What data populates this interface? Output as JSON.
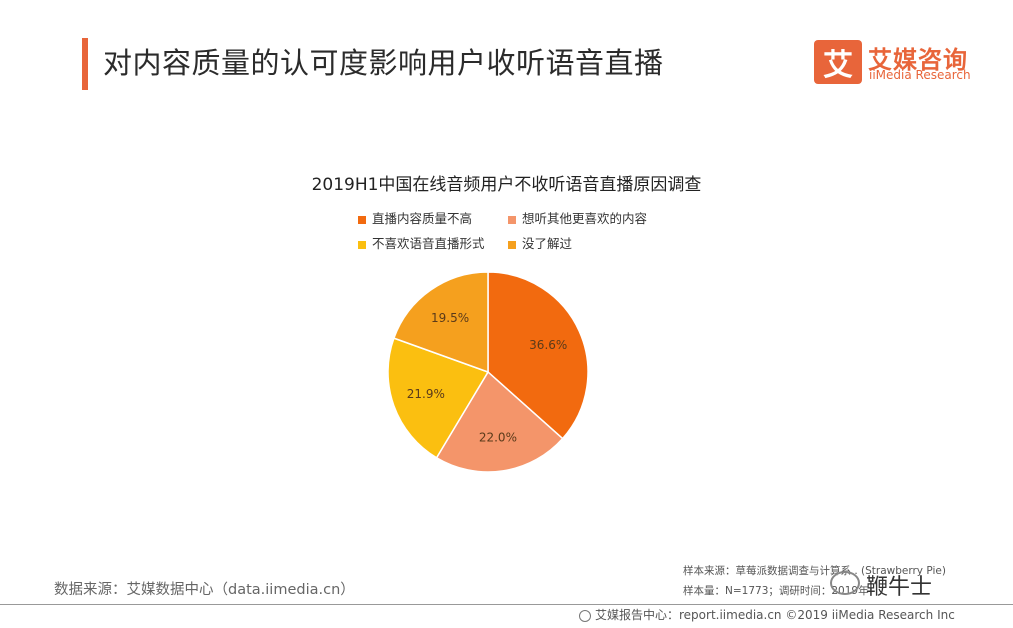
{
  "header": {
    "title": "对内容质量的认可度影响用户收听语音直播",
    "logo_mark": "艾",
    "logo_cn": "艾媒咨询",
    "logo_en": "iiMedia Research"
  },
  "chart_data": {
    "type": "pie",
    "title": "2019H1中国在线音频用户不收听语音直播原因调查",
    "legend_position": "top",
    "categories": [
      "直播内容质量不高",
      "想听其他更喜欢的内容",
      "不喜欢语音直播形式",
      "没了解过"
    ],
    "values": [
      36.6,
      22.0,
      21.9,
      19.5
    ],
    "labels": [
      "36.6%",
      "22.0%",
      "21.9%",
      "19.5%"
    ],
    "colors": [
      "#f26a0f",
      "#f4956a",
      "#fbbf10",
      "#f5a01e"
    ]
  },
  "footer": {
    "source_left": "数据来源：艾媒数据中心（data.iimedia.cn）",
    "sample_source": "样本来源：草莓派数据调查与计算系 . (Strawberry Pie)",
    "sample_size": "样本量：N=1773；调研时间：2019年",
    "watermark": "鞭牛士",
    "report_center": "艾媒报告中心：report.iimedia.cn  ©2019  iiMedia Research  Inc"
  }
}
